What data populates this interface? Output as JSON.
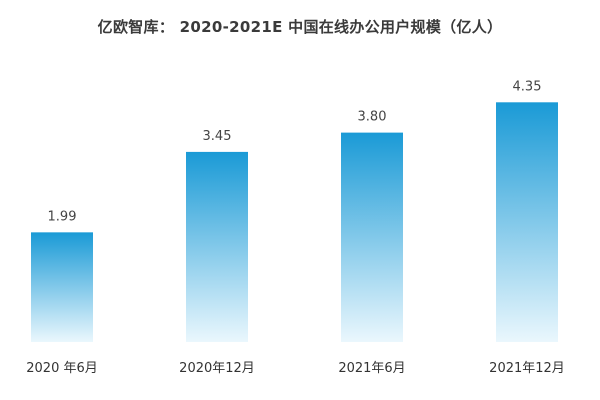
{
  "chart_data": {
    "type": "bar",
    "title": "亿欧智库： 2020-2021E 中国在线办公用户规模（亿人）",
    "categories": [
      "2020 年6月",
      "2020年12月",
      "2021年6月",
      "2021年12月"
    ],
    "values": [
      1.99,
      3.45,
      3.8,
      4.35
    ],
    "value_labels": [
      "1.99",
      "3.45",
      "3.80",
      "4.35"
    ],
    "xlabel": "",
    "ylabel": "",
    "ylim": [
      0,
      4.9
    ],
    "grid": false,
    "legend": "none",
    "colors": {
      "bar_top": "#1a9ad6",
      "bar_bottom": "#eaf7fd"
    }
  }
}
